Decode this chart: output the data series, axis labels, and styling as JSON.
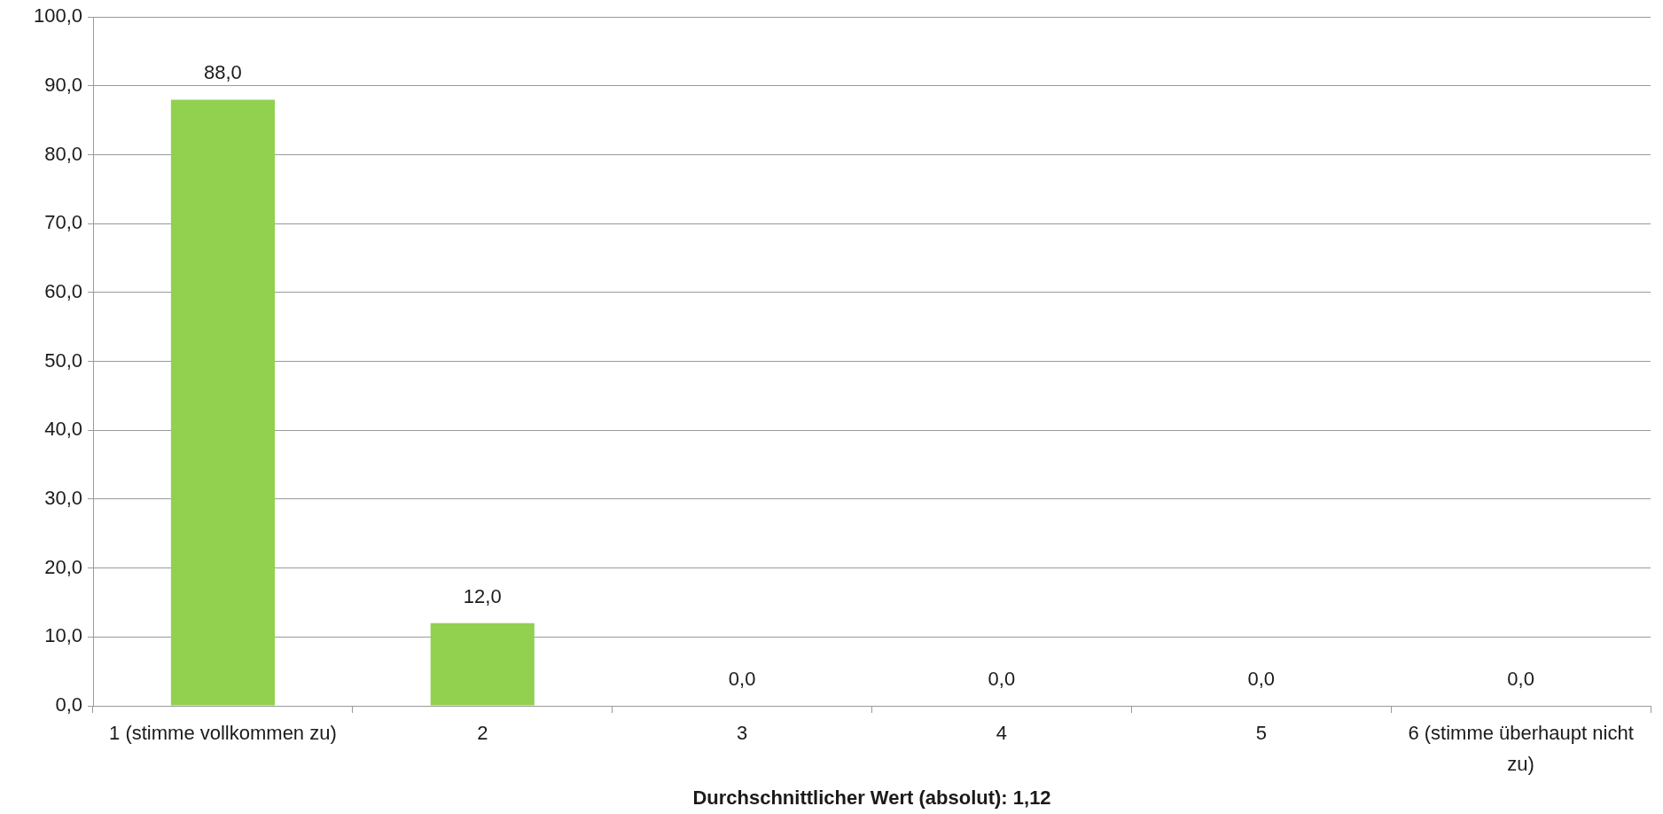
{
  "chart_data": {
    "type": "bar",
    "categories": [
      "1 (stimme vollkommen zu)",
      "2",
      "3",
      "4",
      "5",
      "6 (stimme überhaupt nicht zu)"
    ],
    "values": [
      88,
      12,
      0,
      0,
      0,
      0
    ],
    "color": "#92d050",
    "value_labels": [
      "88,0",
      "12,0",
      "0,0",
      "0,0",
      "0,0",
      "0,0"
    ],
    "xlabel": "Durchschnittlicher Wert (absolut): 1,12",
    "ylim": [
      0,
      100
    ],
    "yticks": [
      {
        "value": 0,
        "label": "0,0"
      },
      {
        "value": 10,
        "label": "10,0"
      },
      {
        "value": 20,
        "label": "20,0"
      },
      {
        "value": 30,
        "label": "30,0"
      },
      {
        "value": 40,
        "label": "40,0"
      },
      {
        "value": 50,
        "label": "50,0"
      },
      {
        "value": 60,
        "label": "60,0"
      },
      {
        "value": 70,
        "label": "70,0"
      },
      {
        "value": 80,
        "label": "80,0"
      },
      {
        "value": 90,
        "label": "90,0"
      },
      {
        "value": 100,
        "label": "100,0"
      }
    ],
    "grid": "y"
  }
}
